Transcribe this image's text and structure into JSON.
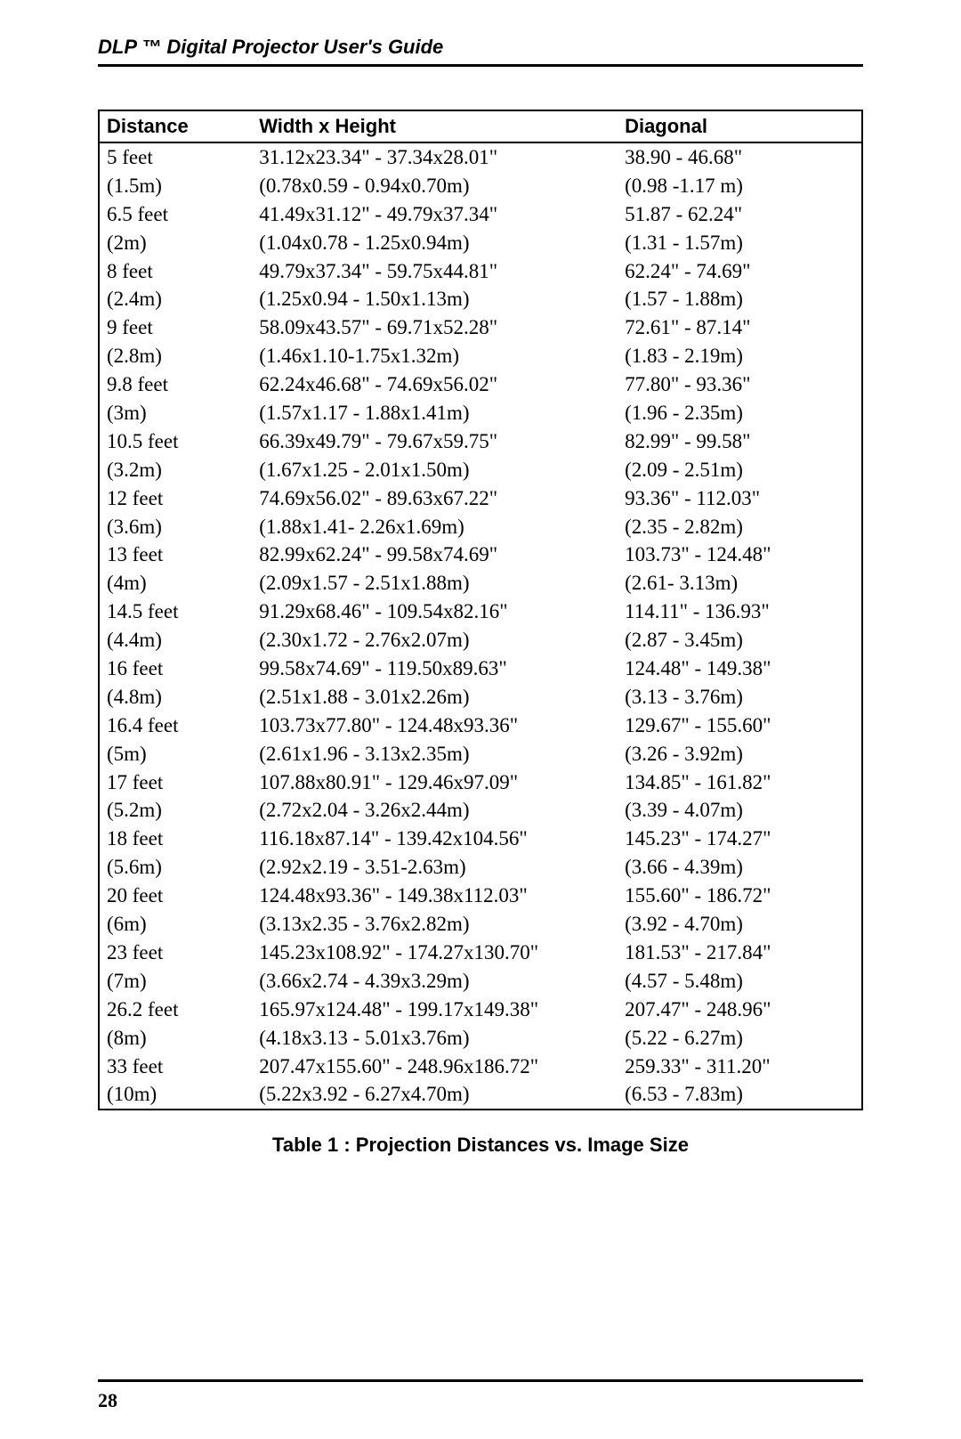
{
  "header": {
    "title": "DLP ™ Digital Projector User's Guide"
  },
  "table": {
    "headers": {
      "distance": "Distance",
      "wh": "Width x Height",
      "diag": "Diagonal"
    },
    "rows": [
      {
        "d": "5 feet",
        "wh": "31.12x23.34\" - 37.34x28.01\"",
        "dg": "38.90 - 46.68\""
      },
      {
        "d": "(1.5m)",
        "wh": "(0.78x0.59 - 0.94x0.70m)",
        "dg": "(0.98 -1.17 m)"
      },
      {
        "d": "6.5 feet",
        "wh": "41.49x31.12\" - 49.79x37.34\"",
        "dg": "51.87 - 62.24\""
      },
      {
        "d": "(2m)",
        "wh": "(1.04x0.78 - 1.25x0.94m)",
        "dg": "(1.31 - 1.57m)"
      },
      {
        "d": "8 feet",
        "wh": "49.79x37.34\" - 59.75x44.81\"",
        "dg": "62.24\" - 74.69\""
      },
      {
        "d": "(2.4m)",
        "wh": "(1.25x0.94 - 1.50x1.13m)",
        "dg": "(1.57 - 1.88m)"
      },
      {
        "d": "9 feet",
        "wh": "58.09x43.57\" - 69.71x52.28\"",
        "dg": "72.61\" - 87.14\""
      },
      {
        "d": "(2.8m)",
        "wh": "(1.46x1.10-1.75x1.32m)",
        "dg": "(1.83 - 2.19m)"
      },
      {
        "d": "9.8 feet",
        "wh": "62.24x46.68\" - 74.69x56.02\"",
        "dg": "77.80\" - 93.36\""
      },
      {
        "d": "(3m)",
        "wh": "(1.57x1.17 - 1.88x1.41m)",
        "dg": "(1.96 - 2.35m)"
      },
      {
        "d": "10.5 feet",
        "wh": "66.39x49.79\" - 79.67x59.75\"",
        "dg": "82.99\" - 99.58\""
      },
      {
        "d": "(3.2m)",
        "wh": "(1.67x1.25 - 2.01x1.50m)",
        "dg": "(2.09 - 2.51m)"
      },
      {
        "d": "12 feet",
        "wh": "74.69x56.02\" - 89.63x67.22\"",
        "dg": "93.36\" - 112.03\""
      },
      {
        "d": "(3.6m)",
        "wh": "(1.88x1.41- 2.26x1.69m)",
        "dg": "(2.35 - 2.82m)"
      },
      {
        "d": "13 feet",
        "wh": "82.99x62.24\" - 99.58x74.69\"",
        "dg": "103.73\" - 124.48\""
      },
      {
        "d": "(4m)",
        "wh": "(2.09x1.57 - 2.51x1.88m)",
        "dg": "(2.61- 3.13m)"
      },
      {
        "d": "14.5 feet",
        "wh": "91.29x68.46\" - 109.54x82.16\"",
        "dg": "114.11\" - 136.93\""
      },
      {
        "d": "(4.4m)",
        "wh": "(2.30x1.72 - 2.76x2.07m)",
        "dg": "(2.87 - 3.45m)"
      },
      {
        "d": "16 feet",
        "wh": "99.58x74.69\" - 119.50x89.63\"",
        "dg": "124.48\" - 149.38\""
      },
      {
        "d": "(4.8m)",
        "wh": "(2.51x1.88 - 3.01x2.26m)",
        "dg": "(3.13 - 3.76m)"
      },
      {
        "d": "16.4 feet",
        "wh": "103.73x77.80\" - 124.48x93.36\"",
        "dg": "129.67\" - 155.60\""
      },
      {
        "d": "(5m)",
        "wh": "(2.61x1.96 - 3.13x2.35m)",
        "dg": "(3.26 - 3.92m)"
      },
      {
        "d": "17 feet",
        "wh": "107.88x80.91\" - 129.46x97.09\"",
        "dg": "134.85\" - 161.82\""
      },
      {
        "d": "(5.2m)",
        "wh": "(2.72x2.04 - 3.26x2.44m)",
        "dg": "(3.39 - 4.07m)"
      },
      {
        "d": "18 feet",
        "wh": "116.18x87.14\" - 139.42x104.56\"",
        "dg": "145.23\" - 174.27\""
      },
      {
        "d": "(5.6m)",
        "wh": "(2.92x2.19 - 3.51-2.63m)",
        "dg": "(3.66 - 4.39m)"
      },
      {
        "d": "20 feet",
        "wh": "124.48x93.36\" - 149.38x112.03\"",
        "dg": "155.60\" - 186.72\""
      },
      {
        "d": "(6m)",
        "wh": "(3.13x2.35 - 3.76x2.82m)",
        "dg": "(3.92 - 4.70m)"
      },
      {
        "d": "23 feet",
        "wh": "145.23x108.92\" - 174.27x130.70\"",
        "dg": "181.53\" - 217.84\""
      },
      {
        "d": "(7m)",
        "wh": "(3.66x2.74 - 4.39x3.29m)",
        "dg": "(4.57 - 5.48m)"
      },
      {
        "d": "26.2 feet",
        "wh": "165.97x124.48\" - 199.17x149.38\"",
        "dg": "207.47\" - 248.96\""
      },
      {
        "d": "(8m)",
        "wh": "(4.18x3.13 - 5.01x3.76m)",
        "dg": "(5.22 - 6.27m)"
      },
      {
        "d": "33 feet",
        "wh": "207.47x155.60\" - 248.96x186.72\"",
        "dg": "259.33\" - 311.20\""
      },
      {
        "d": "(10m)",
        "wh": "(5.22x3.92 - 6.27x4.70m)",
        "dg": "(6.53 - 7.83m)"
      }
    ]
  },
  "caption": "Table 1 : Projection Distances vs. Image Size",
  "footer": {
    "page": "28"
  }
}
